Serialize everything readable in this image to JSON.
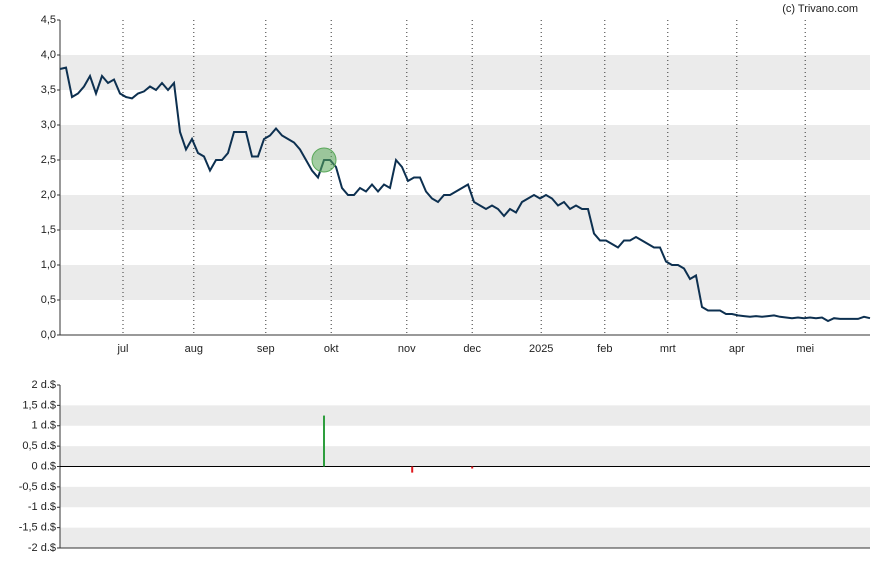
{
  "credit": "(c) Trivano.com",
  "chart_data": [
    {
      "type": "line",
      "color": "#0d3050",
      "values": [
        3.8,
        3.82,
        3.4,
        3.45,
        3.55,
        3.7,
        3.45,
        3.7,
        3.6,
        3.65,
        3.45,
        3.4,
        3.38,
        3.45,
        3.48,
        3.55,
        3.5,
        3.6,
        3.5,
        3.6,
        2.9,
        2.65,
        2.8,
        2.6,
        2.55,
        2.35,
        2.5,
        2.5,
        2.6,
        2.9,
        2.9,
        2.9,
        2.55,
        2.55,
        2.8,
        2.85,
        2.95,
        2.85,
        2.8,
        2.75,
        2.65,
        2.5,
        2.35,
        2.25,
        2.5,
        2.5,
        2.4,
        2.1,
        2.0,
        2.0,
        2.1,
        2.05,
        2.15,
        2.05,
        2.15,
        2.1,
        2.5,
        2.4,
        2.2,
        2.25,
        2.25,
        2.05,
        1.95,
        1.9,
        2.0,
        2.0,
        2.05,
        2.1,
        2.15,
        1.9,
        1.85,
        1.8,
        1.85,
        1.8,
        1.7,
        1.8,
        1.75,
        1.9,
        1.95,
        2.0,
        1.95,
        2.0,
        1.95,
        1.85,
        1.9,
        1.8,
        1.85,
        1.8,
        1.8,
        1.45,
        1.35,
        1.35,
        1.3,
        1.25,
        1.35,
        1.35,
        1.4,
        1.35,
        1.3,
        1.25,
        1.25,
        1.05,
        1.0,
        1.0,
        0.95,
        0.8,
        0.85,
        0.4,
        0.35,
        0.35,
        0.35,
        0.3,
        0.3,
        0.28,
        0.27,
        0.26,
        0.27,
        0.26,
        0.27,
        0.28,
        0.26,
        0.25,
        0.24,
        0.25,
        0.24,
        0.25,
        0.24,
        0.25,
        0.2,
        0.24,
        0.23,
        0.23,
        0.23,
        0.23,
        0.26,
        0.24
      ],
      "xlim": [
        0,
        135
      ],
      "xticks": [
        {
          "value": 10.5,
          "label": "jul"
        },
        {
          "value": 22.3,
          "label": "aug"
        },
        {
          "value": 34.3,
          "label": "sep"
        },
        {
          "value": 45.2,
          "label": "okt"
        },
        {
          "value": 57.8,
          "label": "nov"
        },
        {
          "value": 68.7,
          "label": "dec"
        },
        {
          "value": 80.2,
          "label": "2025"
        },
        {
          "value": 90.8,
          "label": "feb"
        },
        {
          "value": 101.3,
          "label": "mrt"
        },
        {
          "value": 112.8,
          "label": "apr"
        },
        {
          "value": 124.2,
          "label": "mei"
        }
      ],
      "ylim": [
        0,
        4.5
      ],
      "yticks": [
        {
          "value": 0,
          "label": "0,0"
        },
        {
          "value": 0.5,
          "label": "0,5"
        },
        {
          "value": 1,
          "label": "1,0"
        },
        {
          "value": 1.5,
          "label": "1,5"
        },
        {
          "value": 2,
          "label": "2,0"
        },
        {
          "value": 2.5,
          "label": "2,5"
        },
        {
          "value": 3,
          "label": "3,0"
        },
        {
          "value": 3.5,
          "label": "3,5"
        },
        {
          "value": 4,
          "label": "4,0"
        },
        {
          "value": 4.5,
          "label": "4,5"
        }
      ],
      "grid_x": true,
      "bands": true,
      "marker_color": "#5aa85a"
    },
    {
      "type": "bar",
      "x": [
        44,
        58.7,
        68.7
      ],
      "values": [
        1.25,
        -0.15,
        -0.05
      ],
      "up_color": "#2e9e3e",
      "down_color": "#e0191e",
      "xlim": [
        0,
        135
      ],
      "ylim": [
        -2,
        2
      ],
      "yticks": [
        {
          "value": -2,
          "label": "-2 d.$"
        },
        {
          "value": -1.5,
          "label": "-1,5 d.$"
        },
        {
          "value": -1,
          "label": "-1 d.$"
        },
        {
          "value": -0.5,
          "label": "-0,5 d.$"
        },
        {
          "value": 0,
          "label": "0 d.$"
        },
        {
          "value": 0.5,
          "label": "0,5 d.$"
        },
        {
          "value": 1,
          "label": "1 d.$"
        },
        {
          "value": 1.5,
          "label": "1,5 d.$"
        },
        {
          "value": 2,
          "label": "2 d.$"
        }
      ],
      "bands": true,
      "zero_line": true
    }
  ]
}
